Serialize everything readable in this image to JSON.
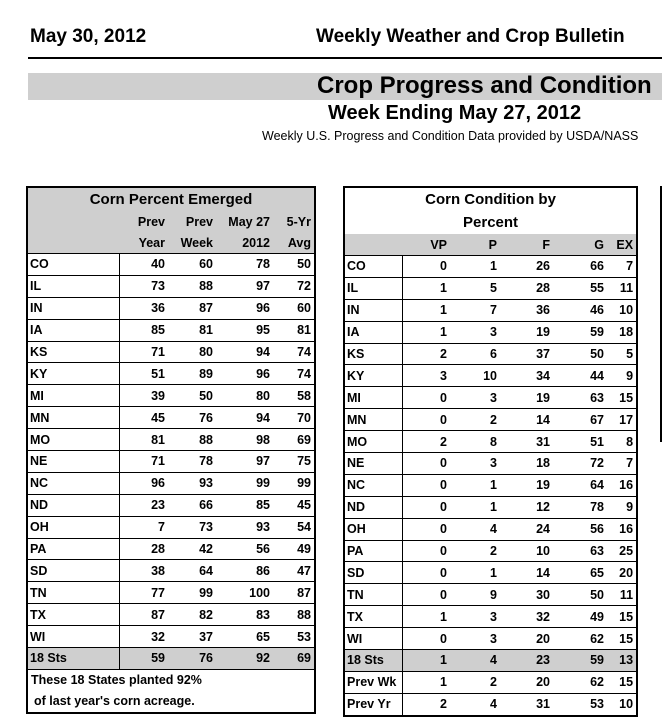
{
  "header": {
    "date": "May 30, 2012",
    "publication": "Weekly Weather and Crop Bulletin"
  },
  "section": {
    "title": "Crop Progress and Condition",
    "week": "Week Ending May 27, 2012",
    "source": "Weekly U.S. Progress and Condition Data provided by USDA/NASS"
  },
  "emerged": {
    "title": "Corn Percent Emerged",
    "head1": [
      "",
      "Prev",
      "Prev",
      "May 27",
      "5-Yr"
    ],
    "head2": [
      "",
      "Year",
      "Week",
      "2012",
      "Avg"
    ],
    "rows": [
      [
        "CO",
        "40",
        "60",
        "78",
        "50"
      ],
      [
        "IL",
        "73",
        "88",
        "97",
        "72"
      ],
      [
        "IN",
        "36",
        "87",
        "96",
        "60"
      ],
      [
        "IA",
        "85",
        "81",
        "95",
        "81"
      ],
      [
        "KS",
        "71",
        "80",
        "94",
        "74"
      ],
      [
        "KY",
        "51",
        "89",
        "96",
        "74"
      ],
      [
        "MI",
        "39",
        "50",
        "80",
        "58"
      ],
      [
        "MN",
        "45",
        "76",
        "94",
        "70"
      ],
      [
        "MO",
        "81",
        "88",
        "98",
        "69"
      ],
      [
        "NE",
        "71",
        "78",
        "97",
        "75"
      ],
      [
        "NC",
        "96",
        "93",
        "99",
        "99"
      ],
      [
        "ND",
        "23",
        "66",
        "85",
        "45"
      ],
      [
        "OH",
        "7",
        "73",
        "93",
        "54"
      ],
      [
        "PA",
        "28",
        "42",
        "56",
        "49"
      ],
      [
        "SD",
        "38",
        "64",
        "86",
        "47"
      ],
      [
        "TN",
        "77",
        "99",
        "100",
        "87"
      ],
      [
        "TX",
        "87",
        "82",
        "83",
        "88"
      ],
      [
        "WI",
        "32",
        "37",
        "65",
        "53"
      ]
    ],
    "total": [
      "18 Sts",
      "59",
      "76",
      "92",
      "69"
    ],
    "note1": "These 18 States planted 92%",
    "note2": "of last year's corn acreage."
  },
  "condition": {
    "title1": "Corn Condition by",
    "title2": "Percent",
    "head": [
      "",
      "VP",
      "P",
      "F",
      "G",
      "EX"
    ],
    "rows": [
      [
        "CO",
        "0",
        "1",
        "26",
        "66",
        "7"
      ],
      [
        "IL",
        "1",
        "5",
        "28",
        "55",
        "11"
      ],
      [
        "IN",
        "1",
        "7",
        "36",
        "46",
        "10"
      ],
      [
        "IA",
        "1",
        "3",
        "19",
        "59",
        "18"
      ],
      [
        "KS",
        "2",
        "6",
        "37",
        "50",
        "5"
      ],
      [
        "KY",
        "3",
        "10",
        "34",
        "44",
        "9"
      ],
      [
        "MI",
        "0",
        "3",
        "19",
        "63",
        "15"
      ],
      [
        "MN",
        "0",
        "2",
        "14",
        "67",
        "17"
      ],
      [
        "MO",
        "2",
        "8",
        "31",
        "51",
        "8"
      ],
      [
        "NE",
        "0",
        "3",
        "18",
        "72",
        "7"
      ],
      [
        "NC",
        "0",
        "1",
        "19",
        "64",
        "16"
      ],
      [
        "ND",
        "0",
        "1",
        "12",
        "78",
        "9"
      ],
      [
        "OH",
        "0",
        "4",
        "24",
        "56",
        "16"
      ],
      [
        "PA",
        "0",
        "2",
        "10",
        "63",
        "25"
      ],
      [
        "SD",
        "0",
        "1",
        "14",
        "65",
        "20"
      ],
      [
        "TN",
        "0",
        "9",
        "30",
        "50",
        "11"
      ],
      [
        "TX",
        "1",
        "3",
        "32",
        "49",
        "15"
      ],
      [
        "WI",
        "0",
        "3",
        "20",
        "62",
        "15"
      ]
    ],
    "total": [
      "18 Sts",
      "1",
      "4",
      "23",
      "59",
      "13"
    ],
    "prev_week": [
      "Prev Wk",
      "1",
      "2",
      "20",
      "62",
      "15"
    ],
    "prev_year": [
      "Prev Yr",
      "2",
      "4",
      "31",
      "53",
      "10"
    ]
  }
}
